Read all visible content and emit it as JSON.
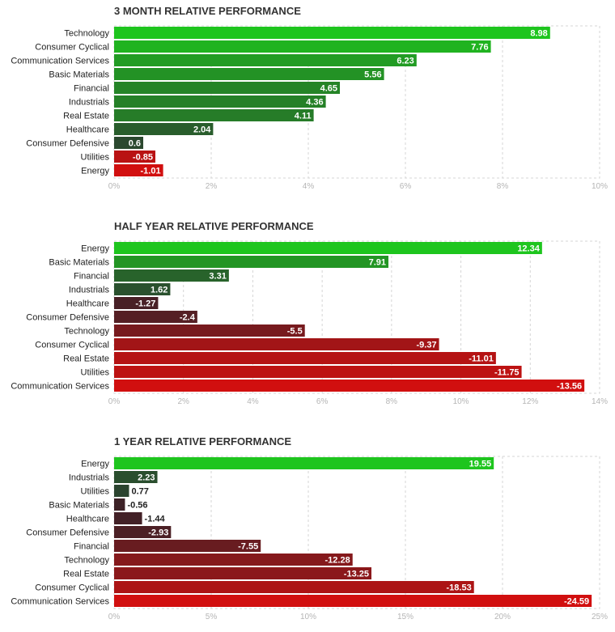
{
  "chart_data": [
    {
      "type": "bar",
      "orientation": "horizontal",
      "title": "3 MONTH RELATIVE PERFORMANCE",
      "categories": [
        "Technology",
        "Consumer Cyclical",
        "Communication Services",
        "Basic Materials",
        "Financial",
        "Industrials",
        "Real Estate",
        "Healthcare",
        "Consumer Defensive",
        "Utilities",
        "Energy"
      ],
      "values": [
        8.98,
        7.76,
        6.23,
        5.56,
        4.65,
        4.36,
        4.11,
        2.04,
        0.6,
        -0.85,
        -1.01
      ],
      "value_labels": [
        "8.98",
        "7.76",
        "6.23",
        "5.56",
        "4.65",
        "4.36",
        "4.11",
        "2.04",
        "0.6",
        "-0.85",
        "-1.01"
      ],
      "xlim": [
        0,
        10
      ],
      "ticks": [
        0,
        2,
        4,
        6,
        8,
        10
      ],
      "tick_labels": [
        "0%",
        "2%",
        "4%",
        "6%",
        "8%",
        "10%"
      ],
      "grid": true
    },
    {
      "type": "bar",
      "orientation": "horizontal",
      "title": "HALF YEAR RELATIVE PERFORMANCE",
      "categories": [
        "Energy",
        "Basic Materials",
        "Financial",
        "Industrials",
        "Healthcare",
        "Consumer Defensive",
        "Technology",
        "Consumer Cyclical",
        "Real Estate",
        "Utilities",
        "Communication Services"
      ],
      "values": [
        12.34,
        7.91,
        3.31,
        1.62,
        -1.27,
        -2.4,
        -5.5,
        -9.37,
        -11.01,
        -11.75,
        -13.56
      ],
      "value_labels": [
        "12.34",
        "7.91",
        "3.31",
        "1.62",
        "-1.27",
        "-2.4",
        "-5.5",
        "-9.37",
        "-11.01",
        "-11.75",
        "-13.56"
      ],
      "xlim": [
        0,
        14
      ],
      "ticks": [
        0,
        2,
        4,
        6,
        8,
        10,
        12,
        14
      ],
      "tick_labels": [
        "0%",
        "2%",
        "4%",
        "6%",
        "8%",
        "10%",
        "12%",
        "14%"
      ],
      "grid": true
    },
    {
      "type": "bar",
      "orientation": "horizontal",
      "title": "1 YEAR RELATIVE PERFORMANCE",
      "categories": [
        "Energy",
        "Industrials",
        "Utilities",
        "Basic Materials",
        "Healthcare",
        "Consumer Defensive",
        "Financial",
        "Technology",
        "Real Estate",
        "Consumer Cyclical",
        "Communication Services"
      ],
      "values": [
        19.55,
        2.23,
        0.77,
        -0.56,
        -1.44,
        -2.93,
        -7.55,
        -12.28,
        -13.25,
        -18.53,
        -24.59
      ],
      "value_labels": [
        "19.55",
        "2.23",
        "0.77",
        "-0.56",
        "-1.44",
        "-2.93",
        "-7.55",
        "-12.28",
        "-13.25",
        "-18.53",
        "-24.59"
      ],
      "xlim": [
        0,
        25
      ],
      "ticks": [
        0,
        5,
        10,
        15,
        20,
        25
      ],
      "tick_labels": [
        "0%",
        "5%",
        "10%",
        "15%",
        "20%",
        "25%"
      ],
      "grid": true
    }
  ],
  "colors": {
    "positive_strong": "#1ec51e",
    "positive_dark": "#2c3f30",
    "negative_dark": "#3a2228",
    "negative_strong": "#d10f0f",
    "grid": "#d5d5d5",
    "tick_text": "#b5b5b5",
    "label_text": "#222222",
    "value_text_on_bar": "#ffffff",
    "value_text_outside": "#222222"
  }
}
